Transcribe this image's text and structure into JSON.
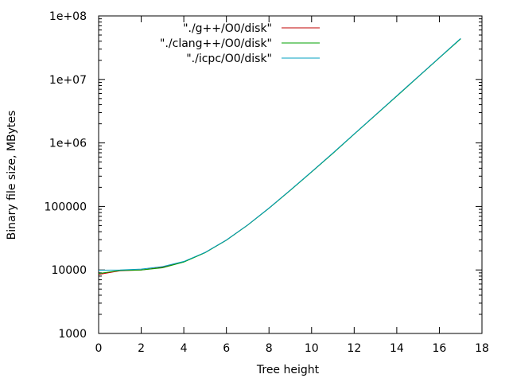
{
  "chart_data": {
    "type": "line",
    "xlabel": "Tree height",
    "ylabel": "Binary file size, MBytes",
    "xlim": [
      0,
      18
    ],
    "ylim": [
      1000,
      100000000
    ],
    "yscale": "log",
    "grid": false,
    "legend_position": "top-center",
    "x_ticks": [
      "0",
      "2",
      "4",
      "6",
      "8",
      "10",
      "12",
      "14",
      "16",
      "18"
    ],
    "y_ticks": [
      {
        "value": 1000,
        "label": "1000"
      },
      {
        "value": 10000,
        "label": "10000"
      },
      {
        "value": 100000,
        "label": "100000"
      },
      {
        "value": 1000000,
        "label": "1e+06"
      },
      {
        "value": 10000000,
        "label": "1e+07"
      },
      {
        "value": 100000000,
        "label": "1e+08"
      }
    ],
    "series": [
      {
        "name": "\"./g++/O0/disk\"",
        "color": "#c00000",
        "x": [
          0,
          1,
          2,
          3,
          4,
          5,
          6,
          7,
          8,
          9,
          10,
          11,
          12,
          13,
          14,
          15,
          16,
          17
        ],
        "y": [
          8500,
          9700,
          10000,
          11000,
          13400,
          18800,
          29500,
          51000,
          94000,
          180000,
          350000,
          690000,
          1380000,
          2750000,
          5500000,
          11000000,
          22000000,
          44000000
        ]
      },
      {
        "name": "\"./clang++/O0/disk\"",
        "color": "#00a000",
        "x": [
          0,
          1,
          2,
          3,
          4,
          5,
          6,
          7,
          8,
          9,
          10,
          11,
          12,
          13,
          14,
          15,
          16,
          17
        ],
        "y": [
          8800,
          9800,
          10000,
          10800,
          13300,
          18700,
          29400,
          50800,
          93500,
          179000,
          348000,
          685000,
          1370000,
          2730000,
          5450000,
          10900000,
          21800000,
          43500000
        ]
      },
      {
        "name": "\"./icpc/O0/disk\"",
        "color": "#00a0c0",
        "x": [
          0,
          1,
          2,
          3,
          4,
          5,
          6,
          7,
          8,
          9,
          10,
          11,
          12,
          13,
          14,
          15,
          16,
          17
        ],
        "y": [
          9900,
          10000,
          10300,
          11300,
          13600,
          18900,
          29600,
          51200,
          94300,
          181000,
          352000,
          695000,
          1385000,
          2760000,
          5520000,
          11050000,
          22100000,
          44200000
        ]
      }
    ]
  }
}
